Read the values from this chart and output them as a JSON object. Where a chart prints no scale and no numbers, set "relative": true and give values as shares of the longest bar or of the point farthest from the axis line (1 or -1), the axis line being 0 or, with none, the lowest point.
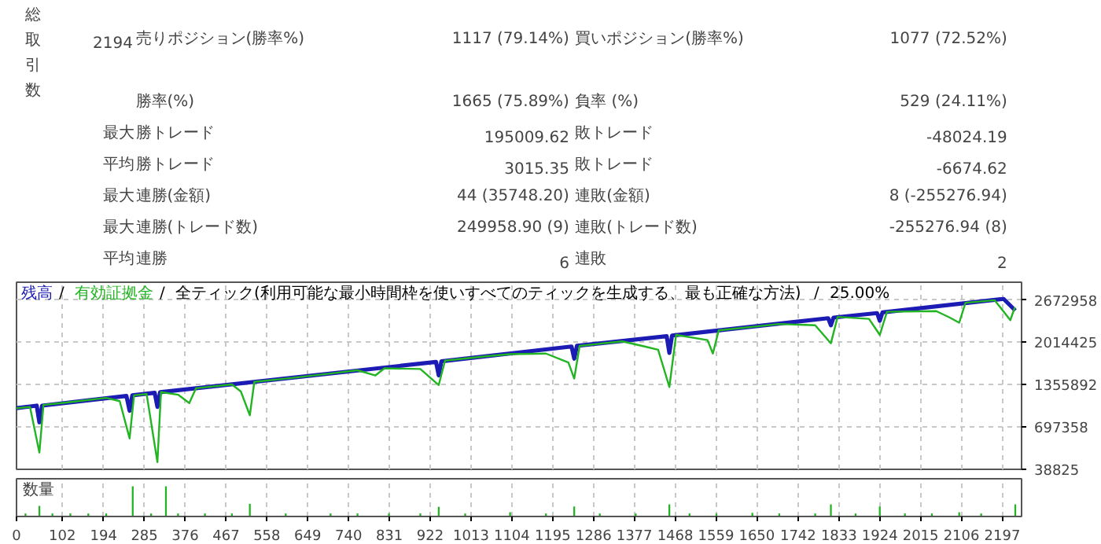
{
  "chart_data": [
    {
      "type": "other",
      "annotations": [
        "総取引数",
        "2194",
        "売りポジション(勝率%)",
        "1117 (79.14%)",
        "買いポジション(勝率%)",
        "1077 (72.52%)",
        "勝率(%)",
        "1665 (75.89%)",
        "負率 (%)",
        "529 (24.11%)",
        "最大",
        "勝トレード",
        "195009.62",
        "敗トレード",
        "-48024.19",
        "平均",
        "勝トレード",
        "3015.35",
        "敗トレード",
        "-6674.62",
        "最大",
        "連勝(金額)",
        "44 (35748.20)",
        "連敗(金額)",
        "8 (-255276.94)",
        "最大",
        "連勝(トレード数)",
        "249958.90 (9)",
        "連敗(トレード数)",
        "-255276.94 (8)",
        "平均",
        "連勝",
        "6",
        "連敗",
        "2"
      ]
    },
    {
      "type": "line",
      "legend": "top left",
      "grid": true,
      "tick_labels": "y",
      "line_style": "solid",
      "marker": "none",
      "annotations": [
        "/",
        "/",
        "全ティック(利用可能な最小時間枠を使いすべてのティックを生成する、最も正確な方法)",
        "/",
        "25.00%"
      ],
      "xlim": [
        0,
        2240
      ],
      "xticks": [
        0,
        102,
        194,
        285,
        376,
        467,
        558,
        649,
        740,
        831,
        922,
        1013,
        1104,
        1195,
        1286,
        1377,
        1468,
        1559,
        1650,
        1742,
        1833,
        1924,
        2015,
        2106,
        2197
      ],
      "ylim": [
        38825,
        2950000
      ],
      "yticks": [
        38825,
        697358,
        1355892,
        2014425,
        2672958
      ],
      "series": [
        {
          "name": "残高",
          "color": "#1c1cb4",
          "x": [
            0,
            45,
            51,
            57,
            245,
            252,
            258,
            308,
            314,
            320,
            935,
            941,
            947,
            1237,
            1243,
            1249,
            1449,
            1455,
            1461,
            1809,
            1815,
            1821,
            1918,
            1924,
            1930,
            2200,
            2226
          ],
          "values": [
            990000,
            1030000,
            770000,
            1030000,
            1180000,
            950000,
            1190000,
            1230000,
            1010000,
            1240000,
            1710000,
            1500000,
            1720000,
            1950000,
            1760000,
            1960000,
            2110000,
            1850000,
            2120000,
            2390000,
            2280000,
            2400000,
            2470000,
            2350000,
            2480000,
            2690000,
            2510000
          ]
        },
        {
          "name": "有効証拠金",
          "color": "#22b422",
          "x": [
            0,
            30,
            51,
            60,
            100,
            200,
            230,
            252,
            262,
            290,
            314,
            322,
            360,
            385,
            400,
            480,
            500,
            520,
            530,
            600,
            700,
            760,
            800,
            820,
            900,
            941,
            955,
            1050,
            1100,
            1180,
            1230,
            1243,
            1255,
            1350,
            1400,
            1430,
            1455,
            1470,
            1540,
            1552,
            1565,
            1700,
            1780,
            1815,
            1830,
            1900,
            1924,
            1940,
            2050,
            2080,
            2101,
            2115,
            2180,
            2215,
            2225
          ],
          "values": [
            990000,
            1010000,
            300000,
            1040000,
            1070000,
            1150000,
            1100000,
            520000,
            1190000,
            1210000,
            150000,
            1240000,
            1200000,
            1070000,
            1300000,
            1360000,
            1250000,
            880000,
            1400000,
            1450000,
            1530000,
            1580000,
            1500000,
            1610000,
            1600000,
            1350000,
            1730000,
            1800000,
            1830000,
            1840000,
            1700000,
            1450000,
            1960000,
            2030000,
            1950000,
            1900000,
            1320000,
            2130000,
            2050000,
            1840000,
            2200000,
            2300000,
            2280000,
            2000000,
            2410000,
            2380000,
            2130000,
            2490000,
            2500000,
            2400000,
            2320000,
            2630000,
            2670000,
            2360000,
            2560000
          ]
        }
      ]
    },
    {
      "type": "bar",
      "relative": true,
      "title": "数量",
      "grid": "x",
      "tick_labels": "x",
      "color": "#22b422",
      "xlim": [
        0,
        2240
      ],
      "xticks": [
        0,
        102,
        194,
        285,
        376,
        467,
        558,
        649,
        740,
        831,
        922,
        1013,
        1104,
        1195,
        1286,
        1377,
        1468,
        1559,
        1650,
        1742,
        1833,
        1924,
        2015,
        2106,
        2197
      ],
      "x": [
        20,
        51,
        80,
        120,
        160,
        200,
        259,
        300,
        333,
        360,
        420,
        480,
        520,
        600,
        700,
        760,
        830,
        900,
        941,
        1000,
        1100,
        1180,
        1243,
        1300,
        1380,
        1455,
        1500,
        1560,
        1640,
        1700,
        1780,
        1815,
        1870,
        1924,
        1980,
        2040,
        2101,
        2150,
        2226
      ],
      "values": [
        0.1,
        0.35,
        0.1,
        0.1,
        0.1,
        0.1,
        1.0,
        0.1,
        1.0,
        0.1,
        0.1,
        0.1,
        0.42,
        0.1,
        0.1,
        0.1,
        0.1,
        0.1,
        0.32,
        0.1,
        0.14,
        0.1,
        0.33,
        0.1,
        0.1,
        0.4,
        0.1,
        0.1,
        0.12,
        0.1,
        0.1,
        0.4,
        0.1,
        0.33,
        0.1,
        0.1,
        0.14,
        0.1,
        0.4
      ]
    }
  ]
}
